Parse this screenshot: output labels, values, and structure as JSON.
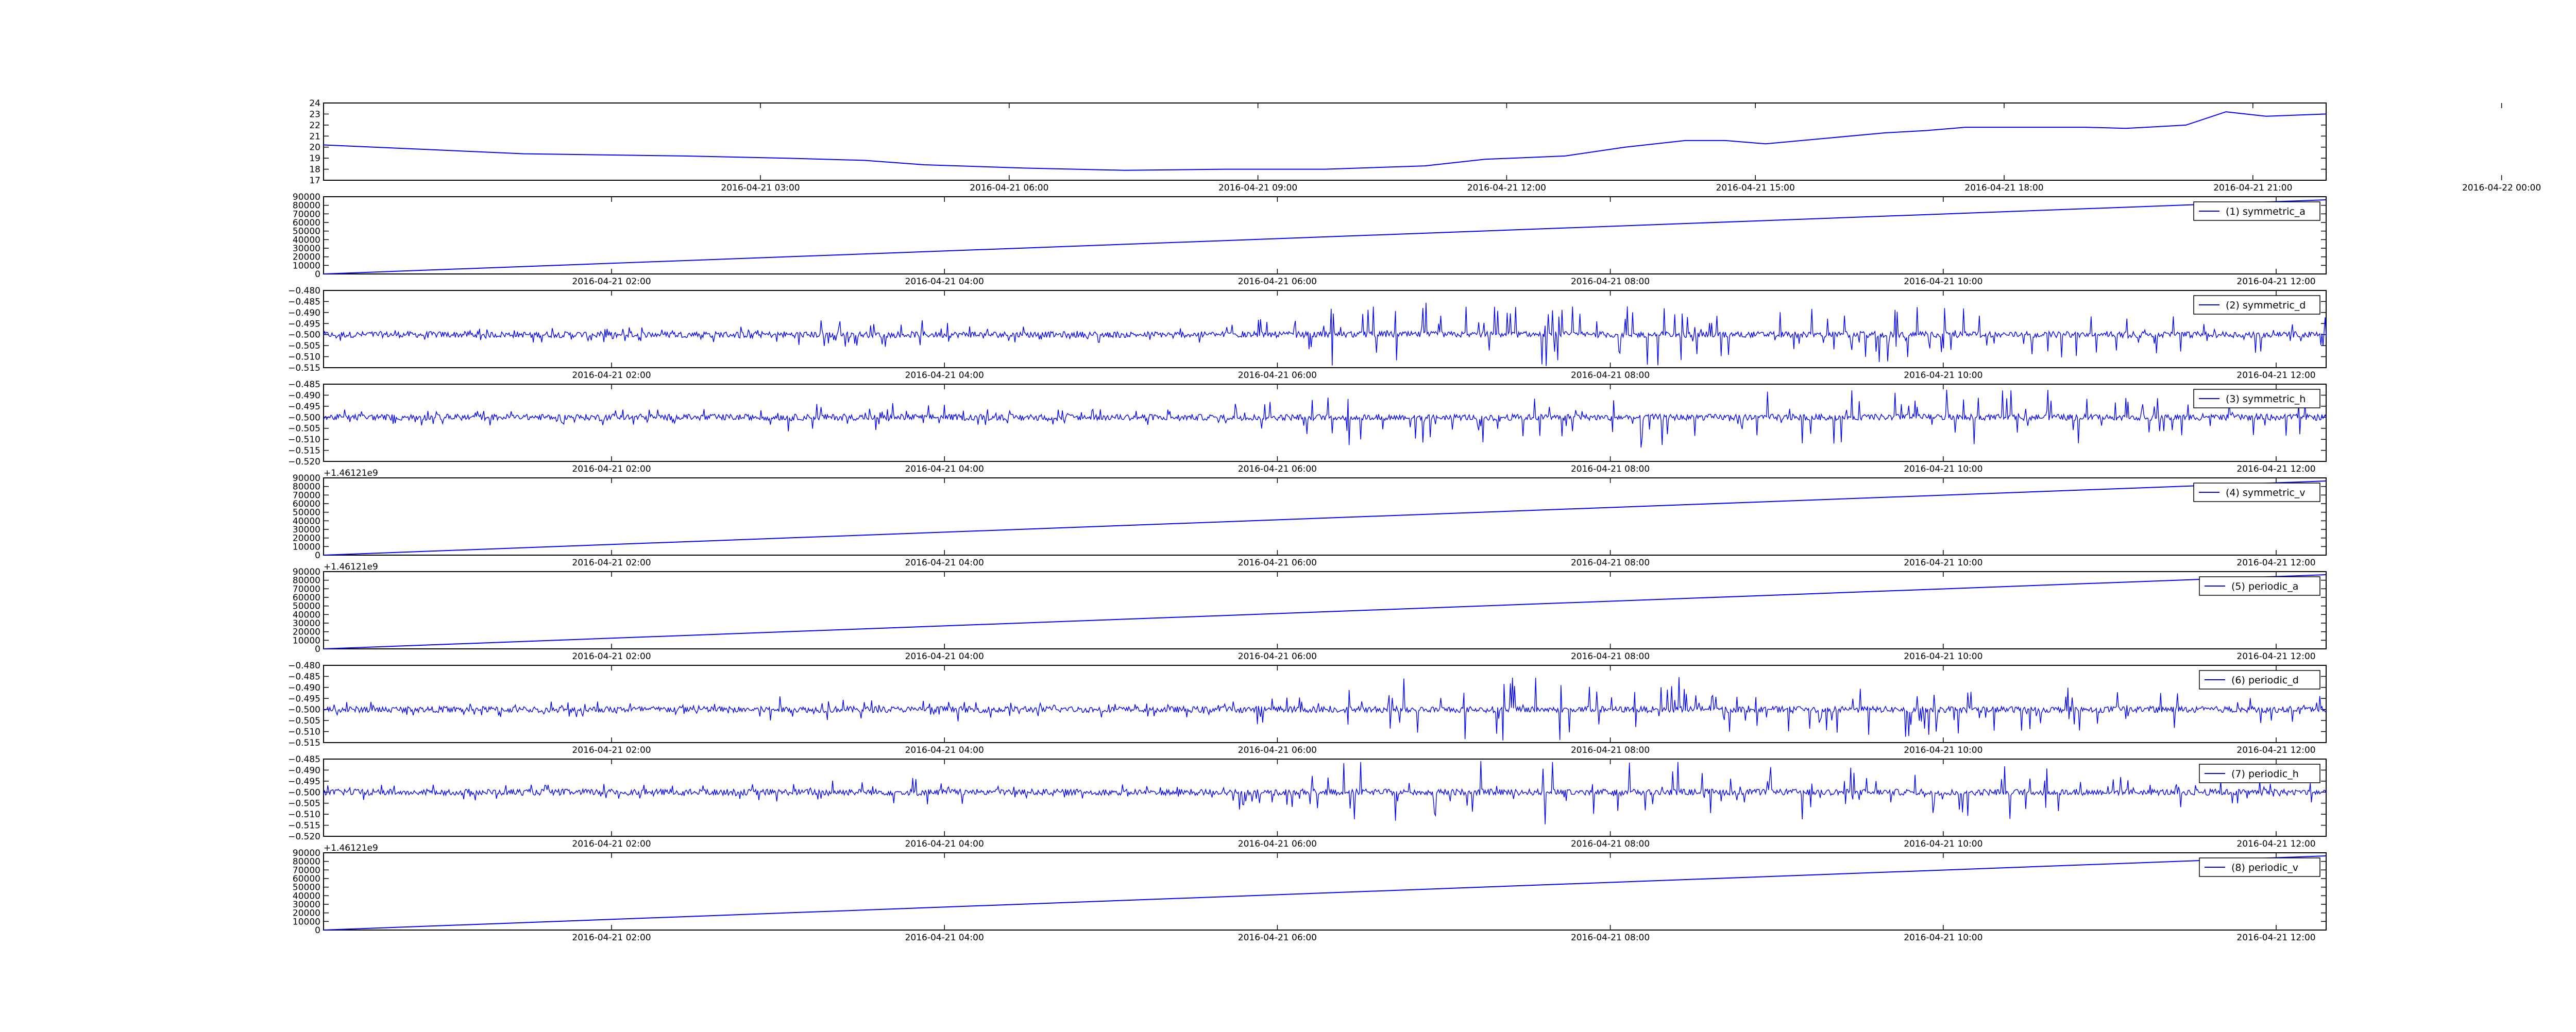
{
  "figure": {
    "line_color": "#0000ff",
    "axis_color": "#000000",
    "legend_line_color": "#0000ff"
  },
  "chart_data": [
    {
      "type": "line",
      "legend": "",
      "offset_label": "",
      "ylim": [
        17,
        24
      ],
      "yticks": [
        "17",
        "18",
        "19",
        "20",
        "21",
        "22",
        "23",
        "24"
      ],
      "xlim": [
        "2016-04-21 00:13",
        "2016-04-22 00:10"
      ],
      "xticks": [
        "2016-04-21 03:00",
        "2016-04-21 06:00",
        "2016-04-21 09:00",
        "2016-04-21 12:00",
        "2016-04-21 15:00",
        "2016-04-21 18:00",
        "2016-04-21 21:00",
        "2016-04-22 00:00"
      ],
      "series": [
        {
          "kind": "curve",
          "points": [
            [
              0,
              20.2
            ],
            [
              0.05,
              19.8
            ],
            [
              0.1,
              19.4
            ],
            [
              0.18,
              19.2
            ],
            [
              0.23,
              19.0
            ],
            [
              0.27,
              18.8
            ],
            [
              0.3,
              18.4
            ],
            [
              0.35,
              18.1
            ],
            [
              0.4,
              17.9
            ],
            [
              0.45,
              18.0
            ],
            [
              0.5,
              18.0
            ],
            [
              0.55,
              18.3
            ],
            [
              0.58,
              18.9
            ],
            [
              0.62,
              19.2
            ],
            [
              0.65,
              20.0
            ],
            [
              0.68,
              20.6
            ],
            [
              0.7,
              20.6
            ],
            [
              0.72,
              20.3
            ],
            [
              0.75,
              20.8
            ],
            [
              0.78,
              21.3
            ],
            [
              0.8,
              21.5
            ],
            [
              0.82,
              21.8
            ],
            [
              0.85,
              21.8
            ],
            [
              0.88,
              21.8
            ],
            [
              0.9,
              21.7
            ],
            [
              0.93,
              22.0
            ],
            [
              0.95,
              23.2
            ],
            [
              0.97,
              22.8
            ],
            [
              1.0,
              23.0
            ]
          ]
        }
      ]
    },
    {
      "type": "line",
      "legend": "(1) symmetric_a",
      "offset_label": "",
      "ylim": [
        0,
        90000
      ],
      "yticks": [
        "0",
        "10000",
        "20000",
        "30000",
        "40000",
        "50000",
        "60000",
        "70000",
        "80000",
        "90000"
      ],
      "xticks": [
        "2016-04-21 02:00",
        "2016-04-21 04:00",
        "2016-04-21 06:00",
        "2016-04-21 08:00",
        "2016-04-21 10:00",
        "2016-04-21 12:00"
      ],
      "series": [
        {
          "kind": "ramp",
          "start": 0,
          "end": 86400
        }
      ]
    },
    {
      "type": "line",
      "legend": "(2) symmetric_d",
      "offset_label": "",
      "ylim": [
        -0.515,
        -0.48
      ],
      "yticks": [
        "−0.515",
        "−0.510",
        "−0.505",
        "−0.500",
        "−0.495",
        "−0.490",
        "−0.485",
        "−0.480"
      ],
      "xticks": [
        "2016-04-21 02:00",
        "2016-04-21 04:00",
        "2016-04-21 06:00",
        "2016-04-21 08:00",
        "2016-04-21 10:00",
        "2016-04-21 12:00"
      ],
      "series": [
        {
          "kind": "noise",
          "center": -0.5,
          "pattern": "d"
        }
      ]
    },
    {
      "type": "line",
      "legend": "(3) symmetric_h",
      "offset_label": "",
      "ylim": [
        -0.52,
        -0.485
      ],
      "yticks": [
        "−0.520",
        "−0.515",
        "−0.510",
        "−0.505",
        "−0.500",
        "−0.495",
        "−0.490",
        "−0.485"
      ],
      "xticks": [
        "2016-04-21 02:00",
        "2016-04-21 04:00",
        "2016-04-21 06:00",
        "2016-04-21 08:00",
        "2016-04-21 10:00",
        "2016-04-21 12:00"
      ],
      "series": [
        {
          "kind": "noise",
          "center": -0.5,
          "pattern": "h"
        }
      ]
    },
    {
      "type": "line",
      "legend": "(4) symmetric_v",
      "offset_label": "+1.46121e9",
      "ylim": [
        0,
        90000
      ],
      "yticks": [
        "0",
        "10000",
        "20000",
        "30000",
        "40000",
        "50000",
        "60000",
        "70000",
        "80000",
        "90000"
      ],
      "xticks": [
        "2016-04-21 02:00",
        "2016-04-21 04:00",
        "2016-04-21 06:00",
        "2016-04-21 08:00",
        "2016-04-21 10:00",
        "2016-04-21 12:00"
      ],
      "series": [
        {
          "kind": "ramp",
          "start": 0,
          "end": 86400
        }
      ]
    },
    {
      "type": "line",
      "legend": "(5) periodic_a",
      "offset_label": "+1.46121e9",
      "ylim": [
        0,
        90000
      ],
      "yticks": [
        "0",
        "10000",
        "20000",
        "30000",
        "40000",
        "50000",
        "60000",
        "70000",
        "80000",
        "90000"
      ],
      "xticks": [
        "2016-04-21 02:00",
        "2016-04-21 04:00",
        "2016-04-21 06:00",
        "2016-04-21 08:00",
        "2016-04-21 10:00",
        "2016-04-21 12:00"
      ],
      "series": [
        {
          "kind": "ramp",
          "start": 0,
          "end": 86400
        }
      ]
    },
    {
      "type": "line",
      "legend": "(6) periodic_d",
      "offset_label": "",
      "ylim": [
        -0.515,
        -0.48
      ],
      "yticks": [
        "−0.515",
        "−0.510",
        "−0.505",
        "−0.500",
        "−0.495",
        "−0.490",
        "−0.485",
        "−0.480"
      ],
      "xticks": [
        "2016-04-21 02:00",
        "2016-04-21 04:00",
        "2016-04-21 06:00",
        "2016-04-21 08:00",
        "2016-04-21 10:00",
        "2016-04-21 12:00"
      ],
      "series": [
        {
          "kind": "noise",
          "center": -0.5,
          "pattern": "d"
        }
      ]
    },
    {
      "type": "line",
      "legend": "(7) periodic_h",
      "offset_label": "",
      "ylim": [
        -0.52,
        -0.485
      ],
      "yticks": [
        "−0.520",
        "−0.515",
        "−0.510",
        "−0.505",
        "−0.500",
        "−0.495",
        "−0.490",
        "−0.485"
      ],
      "xticks": [
        "2016-04-21 02:00",
        "2016-04-21 04:00",
        "2016-04-21 06:00",
        "2016-04-21 08:00",
        "2016-04-21 10:00",
        "2016-04-21 12:00"
      ],
      "series": [
        {
          "kind": "noise",
          "center": -0.5,
          "pattern": "h"
        }
      ]
    },
    {
      "type": "line",
      "legend": "(8) periodic_v",
      "offset_label": "+1.46121e9",
      "ylim": [
        0,
        90000
      ],
      "yticks": [
        "0",
        "10000",
        "20000",
        "30000",
        "40000",
        "50000",
        "60000",
        "70000",
        "80000",
        "90000"
      ],
      "xticks": [
        "2016-04-21 02:00",
        "2016-04-21 04:00",
        "2016-04-21 06:00",
        "2016-04-21 08:00",
        "2016-04-21 10:00",
        "2016-04-21 12:00"
      ],
      "series": [
        {
          "kind": "ramp",
          "start": 0,
          "end": 86400
        }
      ]
    }
  ]
}
